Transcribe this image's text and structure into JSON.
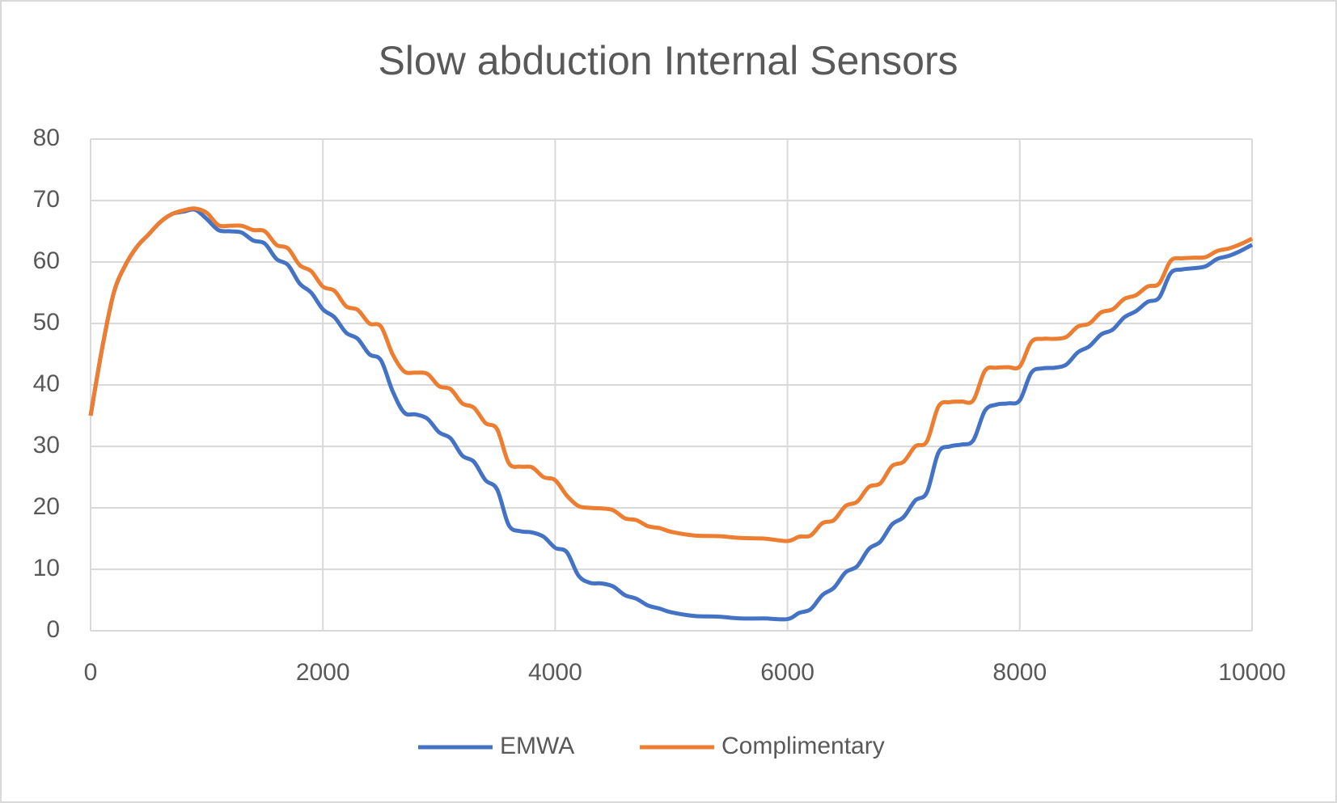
{
  "chart_data": {
    "type": "line",
    "title": "Slow abduction Internal Sensors",
    "x": [
      0,
      100,
      200,
      300,
      400,
      500,
      600,
      700,
      800,
      900,
      1000,
      1100,
      1200,
      1300,
      1400,
      1500,
      1600,
      1700,
      1800,
      1900,
      2000,
      2100,
      2200,
      2300,
      2400,
      2500,
      2600,
      2700,
      2800,
      2900,
      3000,
      3100,
      3200,
      3300,
      3400,
      3500,
      3600,
      3700,
      3800,
      3900,
      4000,
      4100,
      4200,
      4300,
      4400,
      4500,
      4600,
      4700,
      4800,
      4900,
      5000,
      5200,
      5400,
      5600,
      5800,
      6000,
      6100,
      6200,
      6300,
      6400,
      6500,
      6600,
      6700,
      6800,
      6900,
      7000,
      7100,
      7200,
      7300,
      7400,
      7500,
      7600,
      7700,
      7800,
      7900,
      8000,
      8100,
      8200,
      8300,
      8400,
      8500,
      8600,
      8700,
      8800,
      8900,
      9000,
      9100,
      9200,
      9300,
      9400,
      9500,
      9600,
      9700,
      9800,
      9900,
      10000
    ],
    "series": [
      {
        "name": "EMWA",
        "color": "#4472c4",
        "values": [
          35,
          46,
          55,
          59.5,
          62.5,
          64.5,
          66.5,
          67.8,
          68.2,
          68.5,
          67,
          65.2,
          65,
          64.8,
          63.5,
          63,
          60.5,
          59.5,
          56.5,
          55,
          52.3,
          51,
          48.5,
          47.5,
          45,
          44,
          39,
          35.5,
          35.2,
          34.5,
          32.3,
          31.3,
          28.5,
          27.5,
          24.5,
          23,
          17.2,
          16.2,
          16,
          15.3,
          13.5,
          12.8,
          9,
          7.8,
          7.7,
          7.2,
          5.8,
          5.2,
          4.1,
          3.6,
          3,
          2.4,
          2.3,
          2,
          2,
          1.9,
          2.9,
          3.5,
          5.8,
          7,
          9.5,
          10.5,
          13.3,
          14.5,
          17.3,
          18.5,
          21.2,
          22.5,
          29,
          30,
          30.3,
          31,
          35.8,
          36.8,
          37,
          37.5,
          42,
          42.7,
          42.8,
          43.3,
          45.3,
          46.3,
          48.2,
          49,
          51,
          52,
          53.5,
          54.2,
          58.2,
          58.8,
          59,
          59.3,
          60.5,
          61,
          61.8,
          62.8
        ]
      },
      {
        "name": "Complimentary",
        "color": "#ed7d31",
        "values": [
          35,
          46,
          55,
          59.5,
          62.5,
          64.5,
          66.5,
          67.8,
          68.4,
          68.7,
          68,
          66,
          65.9,
          65.9,
          65.2,
          65,
          62.8,
          62.2,
          59.5,
          58.5,
          56,
          55.3,
          52.8,
          52.2,
          50,
          49.5,
          45,
          42.2,
          42,
          41.8,
          39.8,
          39.3,
          37,
          36.3,
          33.8,
          32.8,
          27.3,
          26.7,
          26.6,
          25,
          24.5,
          22,
          20.3,
          20,
          19.9,
          19.6,
          18.3,
          18,
          17,
          16.7,
          16.1,
          15.5,
          15.4,
          15.1,
          15,
          14.6,
          15.3,
          15.5,
          17.5,
          18,
          20.3,
          21,
          23.4,
          24,
          26.8,
          27.5,
          30,
          30.8,
          36.5,
          37.2,
          37.3,
          37.5,
          42.3,
          42.8,
          42.9,
          43,
          47,
          47.5,
          47.5,
          47.8,
          49.5,
          50,
          51.8,
          52.3,
          54,
          54.6,
          56,
          56.5,
          60.2,
          60.6,
          60.7,
          60.8,
          61.8,
          62.2,
          62.9,
          63.8
        ]
      }
    ],
    "xlim": [
      0,
      10000
    ],
    "xticks": [
      0,
      2000,
      4000,
      6000,
      8000,
      10000
    ],
    "ylim": [
      0,
      80
    ],
    "yticks": [
      0,
      10,
      20,
      30,
      40,
      50,
      60,
      70,
      80
    ],
    "grid": true,
    "legend": "bottom"
  }
}
